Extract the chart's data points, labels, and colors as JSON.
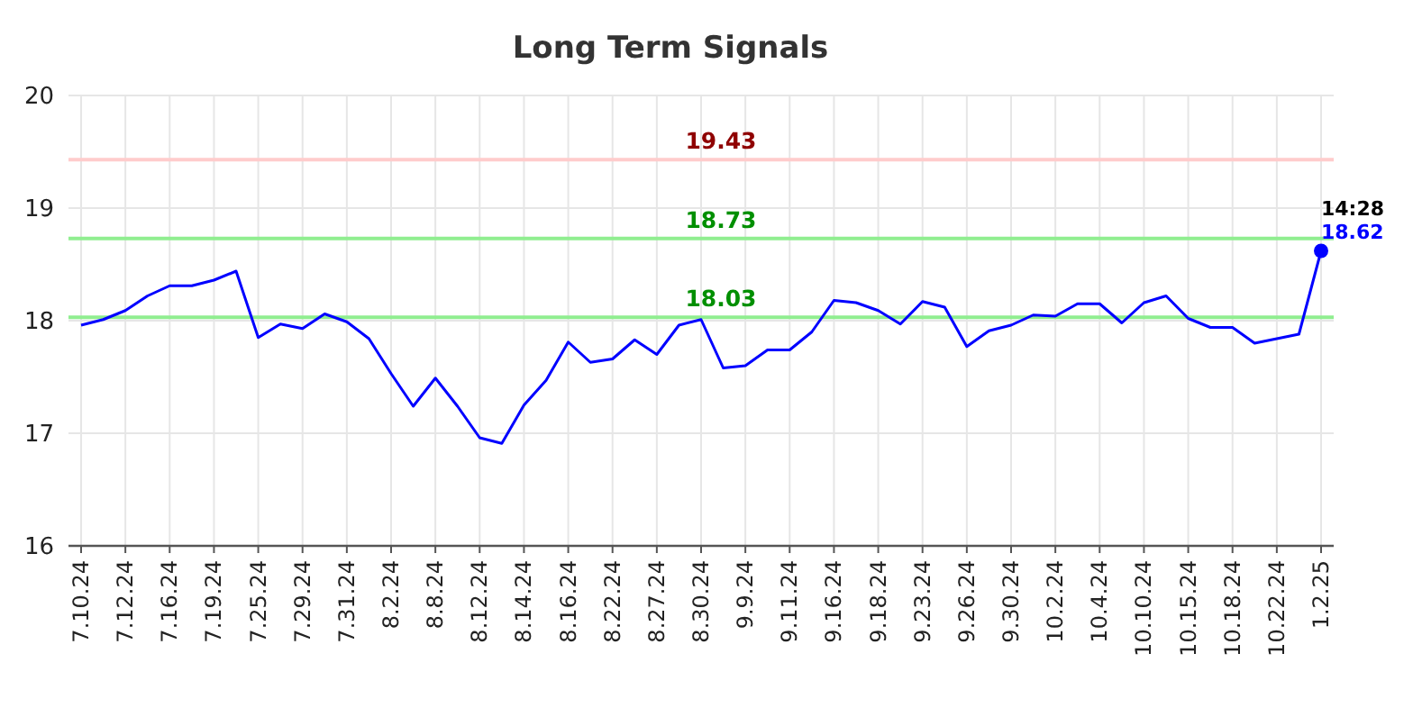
{
  "chart_data": {
    "type": "line",
    "title": "Long Term Signals",
    "categories": [
      "7.10.24",
      null,
      "7.12.24",
      null,
      "7.16.24",
      null,
      "7.19.24",
      null,
      "7.25.24",
      null,
      "7.29.24",
      null,
      "7.31.24",
      null,
      "8.2.24",
      null,
      "8.8.24",
      null,
      "8.12.24",
      null,
      "8.14.24",
      null,
      "8.16.24",
      null,
      "8.22.24",
      null,
      "8.27.24",
      null,
      "8.30.24",
      null,
      "9.9.24",
      null,
      "9.11.24",
      null,
      "9.16.24",
      null,
      "9.18.24",
      null,
      "9.23.24",
      null,
      "9.26.24",
      null,
      "9.30.24",
      null,
      "10.2.24",
      null,
      "10.4.24",
      null,
      "10.10.24",
      null,
      "10.15.24",
      null,
      "10.18.24",
      null,
      "10.22.24",
      null,
      "1.2.25"
    ],
    "series": [
      {
        "color": "#0000ff",
        "values": [
          17.96,
          18.01,
          18.09,
          18.22,
          18.31,
          18.31,
          18.36,
          18.44,
          17.85,
          17.97,
          17.93,
          18.06,
          17.99,
          17.84,
          17.53,
          17.24,
          17.49,
          17.24,
          16.96,
          16.91,
          17.25,
          17.47,
          17.81,
          17.63,
          17.66,
          17.83,
          17.7,
          17.96,
          18.01,
          17.58,
          17.6,
          17.74,
          17.74,
          17.9,
          18.18,
          18.16,
          18.09,
          17.97,
          18.17,
          18.12,
          17.77,
          17.91,
          17.96,
          18.05,
          18.04,
          18.15,
          18.15,
          17.98,
          18.16,
          18.22,
          18.02,
          17.94,
          17.94,
          17.8,
          17.84,
          17.88,
          18.62
        ]
      }
    ],
    "ylim": [
      16,
      20
    ],
    "yticks": [
      16,
      17,
      18,
      19,
      20
    ],
    "grid": true,
    "marker": "none",
    "line_style": "solid",
    "ref_lines": [
      {
        "axis": "y",
        "value": 19.43,
        "label": "19.43",
        "color": "#ffcccc"
      },
      {
        "axis": "y",
        "value": 18.73,
        "label": "18.73",
        "color": "#90ee90"
      },
      {
        "axis": "y",
        "value": 18.03,
        "label": "18.03",
        "color": "#90ee90"
      }
    ],
    "annotations": [
      {
        "text": "14:28",
        "x": "1.2.25",
        "y": 18.62
      },
      {
        "text": "18.62",
        "x": "1.2.25",
        "y": 18.62
      }
    ]
  }
}
